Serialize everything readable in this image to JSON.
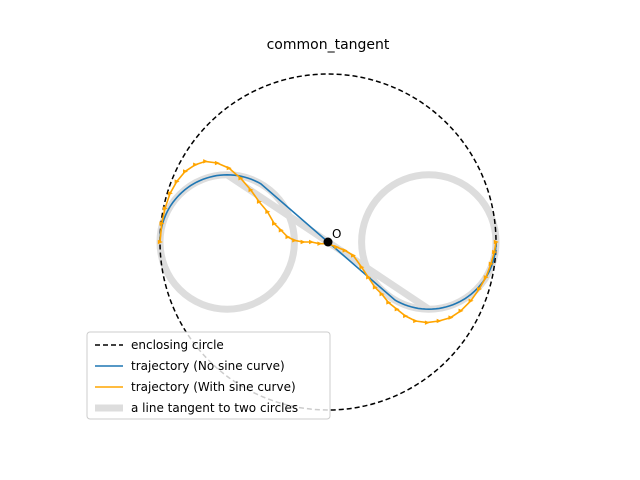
{
  "chart_data": {
    "type": "line",
    "title": "common_tangent",
    "xlabel": "",
    "ylabel": "",
    "axes_visible": false,
    "aspect": "equal",
    "grid": false,
    "xlim": [
      -1.15,
      1.15
    ],
    "ylim": [
      -1.15,
      1.15
    ],
    "legend_position": "lower-left",
    "circles": [
      {
        "name": "enclosing circle",
        "center": [
          0,
          0
        ],
        "radius": 1.0,
        "style": "dashed",
        "color": "#000000"
      },
      {
        "name": "left circle",
        "center": [
          -0.6,
          0
        ],
        "radius": 0.4,
        "style": "thick-gray",
        "color": "#dddddd"
      },
      {
        "name": "right circle",
        "center": [
          0.6,
          0
        ],
        "radius": 0.4,
        "style": "thick-gray",
        "color": "#dddddd"
      }
    ],
    "tangent_line": {
      "name": "a line tangent to two circles",
      "from": [
        -0.6,
        0.4
      ],
      "to": [
        0.6,
        -0.4
      ],
      "color": "#dddddd"
    },
    "series": [
      {
        "name": "trajectory (No sine curve)",
        "color": "#1f77b4",
        "path": {
          "arc1": {
            "center": [
              -0.6,
              0
            ],
            "radius": 0.4,
            "from_deg": 180,
            "to_deg": 60
          },
          "segment": {
            "from": [
              -0.4,
              0.3464
            ],
            "to": [
              0.4,
              -0.3464
            ]
          },
          "arc2": {
            "center": [
              0.6,
              0
            ],
            "radius": 0.4,
            "from_deg": 240,
            "to_deg": 360
          }
        }
      },
      {
        "name": "trajectory (With sine curve)",
        "color": "#ffa500",
        "marker": "triangle",
        "x": [
          -1.0,
          -0.99,
          -0.97,
          -0.94,
          -0.9,
          -0.85,
          -0.79,
          -0.73,
          -0.66,
          -0.59,
          -0.52,
          -0.46,
          -0.41,
          -0.36,
          -0.32,
          -0.28,
          -0.24,
          -0.2,
          -0.15,
          -0.1,
          -0.05,
          0.0,
          0.05,
          0.1,
          0.15,
          0.2,
          0.24,
          0.28,
          0.32,
          0.36,
          0.41,
          0.46,
          0.52,
          0.59,
          0.66,
          0.73,
          0.79,
          0.85,
          0.9,
          0.94,
          0.97,
          0.99,
          1.0
        ],
        "y": [
          0.0,
          0.11,
          0.2,
          0.29,
          0.36,
          0.42,
          0.46,
          0.48,
          0.47,
          0.44,
          0.38,
          0.31,
          0.24,
          0.18,
          0.11,
          0.07,
          0.03,
          0.01,
          0.0,
          0.0,
          -0.01,
          -0.01,
          -0.03,
          -0.05,
          -0.08,
          -0.15,
          -0.21,
          -0.27,
          -0.31,
          -0.36,
          -0.4,
          -0.44,
          -0.47,
          -0.48,
          -0.47,
          -0.45,
          -0.41,
          -0.35,
          -0.28,
          -0.21,
          -0.13,
          -0.06,
          0.0
        ]
      }
    ],
    "points": [
      {
        "label": "O",
        "x": 0,
        "y": 0,
        "color": "#000000"
      }
    ],
    "legend": [
      {
        "label": "enclosing circle",
        "style": "dashed",
        "color": "#000000"
      },
      {
        "label": "trajectory (No sine curve)",
        "style": "solid",
        "color": "#1f77b4"
      },
      {
        "label": "trajectory (With sine curve)",
        "style": "solid",
        "color": "#ffa500"
      },
      {
        "label": "a line tangent to two circles",
        "style": "thick",
        "color": "#dddddd"
      }
    ]
  }
}
